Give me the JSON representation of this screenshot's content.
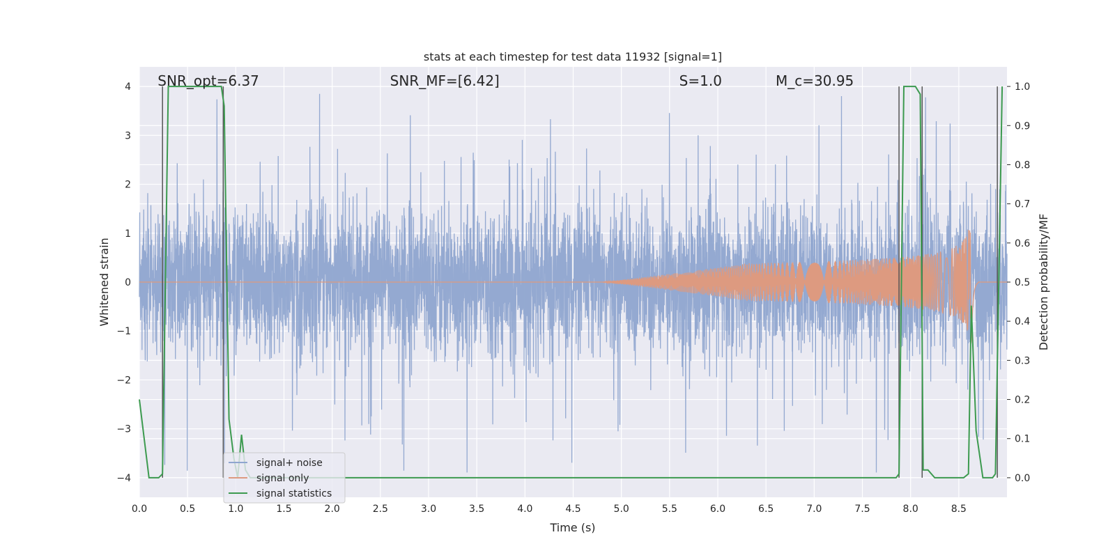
{
  "chart_data": {
    "type": "line",
    "title": "stats at each timestep for test data 11932 [signal=1]",
    "xlabel": "Time (s)",
    "ylabel_left": "Whitened strain",
    "ylabel_right": "Detection probability/MF",
    "xlim": [
      0.0,
      9.0
    ],
    "ylim_left": [
      -4.4,
      4.4
    ],
    "ylim_right": [
      -0.05,
      1.05
    ],
    "x_ticks": [
      "0.0",
      "0.5",
      "1.0",
      "1.5",
      "2.0",
      "2.5",
      "3.0",
      "3.5",
      "4.0",
      "4.5",
      "5.0",
      "5.5",
      "6.0",
      "6.5",
      "7.0",
      "7.5",
      "8.0",
      "8.5"
    ],
    "x_tick_values": [
      0.0,
      0.5,
      1.0,
      1.5,
      2.0,
      2.5,
      3.0,
      3.5,
      4.0,
      4.5,
      5.0,
      5.5,
      6.0,
      6.5,
      7.0,
      7.5,
      8.0,
      8.5
    ],
    "y_left_ticks": [
      "−4",
      "−3",
      "−2",
      "−1",
      "0",
      "1",
      "2",
      "3",
      "4"
    ],
    "y_left_tick_values": [
      -4,
      -3,
      -2,
      -1,
      0,
      1,
      2,
      3,
      4
    ],
    "y_right_ticks": [
      "0.0",
      "0.1",
      "0.2",
      "0.3",
      "0.4",
      "0.5",
      "0.6",
      "0.7",
      "0.8",
      "0.9",
      "1.0"
    ],
    "y_right_tick_values": [
      0.0,
      0.1,
      0.2,
      0.3,
      0.4,
      0.5,
      0.6,
      0.7,
      0.8,
      0.9,
      1.0
    ],
    "grid": true,
    "legend_position": "lower-left",
    "annotations": [
      {
        "id": "snr-opt",
        "text": "SNR_opt=6.37",
        "x": 0.19,
        "y": 4.0
      },
      {
        "id": "snr-mf",
        "text": "SNR_MF=[6.42]",
        "x": 2.6,
        "y": 4.0
      },
      {
        "id": "s-value",
        "text": "S=1.0",
        "x": 5.6,
        "y": 4.0
      },
      {
        "id": "mc-value",
        "text": "M_c=30.95",
        "x": 6.6,
        "y": 4.0
      }
    ],
    "series": [
      {
        "name": "signal+ noise",
        "color": "#8fa5cf",
        "axis": "left",
        "description_values": "dense whitened strain noise, amplitude mostly within about ±1.6 with spikes to ±4",
        "amplitude_envelope": {
          "typical": 1.6,
          "peak_max": 3.95,
          "peak_min": -4.0
        }
      },
      {
        "name": "signal only",
        "color": "#dd9a80",
        "axis": "left",
        "chirp": {
          "start_time": 4.8,
          "merger_time": 8.63,
          "peak_amplitude": 1.5,
          "end_time": 8.7
        }
      },
      {
        "name": "signal statistics",
        "color": "#3c9a4f",
        "axis": "right",
        "x": [
          0.0,
          0.05,
          0.1,
          0.2,
          0.24,
          0.3,
          0.85,
          0.88,
          0.93,
          0.98,
          1.02,
          1.06,
          1.1,
          1.15,
          7.85,
          7.88,
          7.93,
          8.05,
          8.1,
          8.13,
          8.18,
          8.25,
          8.55,
          8.6,
          8.63,
          8.68,
          8.75,
          8.85,
          8.88,
          8.95
        ],
        "y": [
          0.2,
          0.1,
          0.0,
          0.0,
          0.01,
          1.0,
          1.0,
          0.95,
          0.15,
          0.05,
          0.0,
          0.11,
          0.02,
          0.0,
          0.0,
          0.01,
          1.0,
          1.0,
          0.98,
          0.02,
          0.02,
          0.0,
          0.0,
          0.01,
          0.44,
          0.12,
          0.0,
          0.0,
          0.01,
          1.0
        ]
      }
    ],
    "vertical_lines": [
      {
        "x": 0.24,
        "color": "#555555"
      },
      {
        "x": 0.87,
        "color": "#555555"
      },
      {
        "x": 7.88,
        "color": "#555555"
      },
      {
        "x": 8.12,
        "color": "#555555"
      },
      {
        "x": 8.9,
        "color": "#555555"
      }
    ]
  },
  "legend": {
    "items": [
      {
        "label": "signal+ noise",
        "color": "#8fa5cf"
      },
      {
        "label": "signal only",
        "color": "#dd9a80"
      },
      {
        "label": "signal statistics",
        "color": "#3c9a4f"
      }
    ]
  },
  "colors": {
    "plot_background": "#eaeaf2",
    "grid": "#ffffff"
  }
}
